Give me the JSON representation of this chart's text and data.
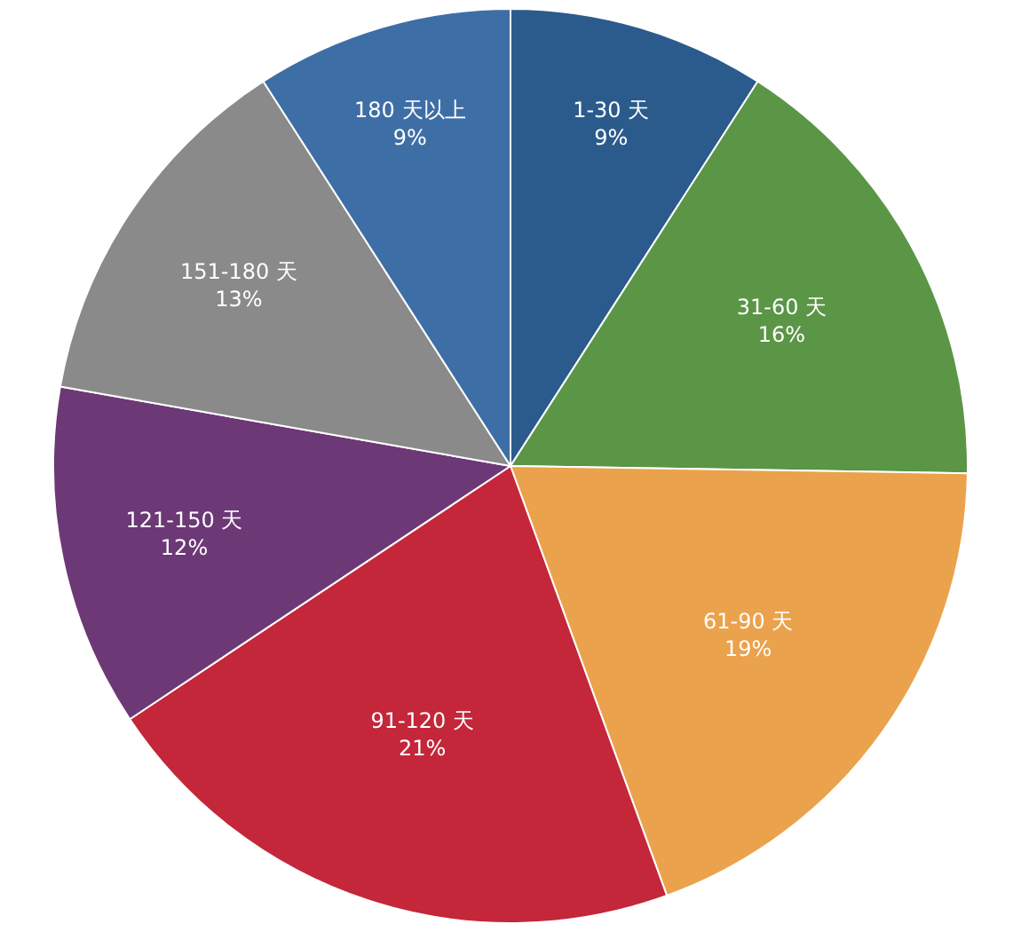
{
  "chart_data": {
    "type": "pie",
    "categories": [
      "1-30 天",
      "31-60 天",
      "61-90 天",
      "91-120 天",
      "121-150 天",
      "151-180 天",
      "180 天以上"
    ],
    "values": [
      9,
      16,
      19,
      21,
      12,
      13,
      9
    ],
    "value_labels": [
      "9%",
      "16%",
      "19%",
      "21%",
      "12%",
      "13%",
      "9%"
    ],
    "colors": [
      "#2b5b8c",
      "#5a9645",
      "#eba24c",
      "#c4263a",
      "#6d3876",
      "#8a8a8a",
      "#3e6ea6"
    ],
    "legend": false
  }
}
